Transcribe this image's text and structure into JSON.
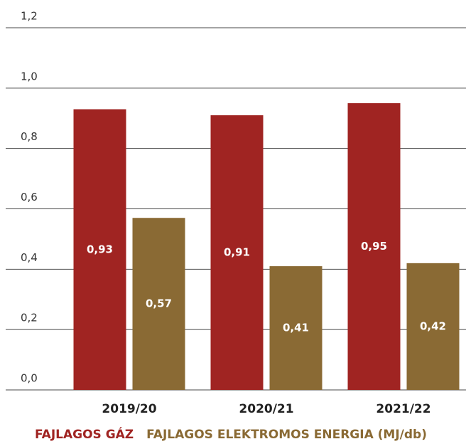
{
  "chart_data": {
    "type": "bar",
    "categories": [
      "2019/20",
      "2020/21",
      "2021/22"
    ],
    "series": [
      {
        "name": "FAJLAGOS GÁZ",
        "color": "#a02422",
        "values": [
          0.93,
          0.91,
          0.95
        ],
        "value_labels": [
          "0,93",
          "0,91",
          "0,95"
        ]
      },
      {
        "name": "FAJLAGOS ELEKTROMOS ENERGIA (MJ/db)",
        "color": "#8a6a34",
        "values": [
          0.57,
          0.41,
          0.42
        ],
        "value_labels": [
          "0,57",
          "0,41",
          "0,42"
        ]
      }
    ],
    "ylim": [
      0,
      1.2
    ],
    "yticks": [
      {
        "value": 0,
        "label": "0,0"
      },
      {
        "value": 0.2,
        "label": "0,2"
      },
      {
        "value": 0.4,
        "label": "0,4"
      },
      {
        "value": 0.6,
        "label": "0,6"
      },
      {
        "value": 0.8,
        "label": "0,8"
      },
      {
        "value": 1.0,
        "label": "1,0"
      },
      {
        "value": 1.2,
        "label": "1,2"
      }
    ],
    "grid": true
  }
}
